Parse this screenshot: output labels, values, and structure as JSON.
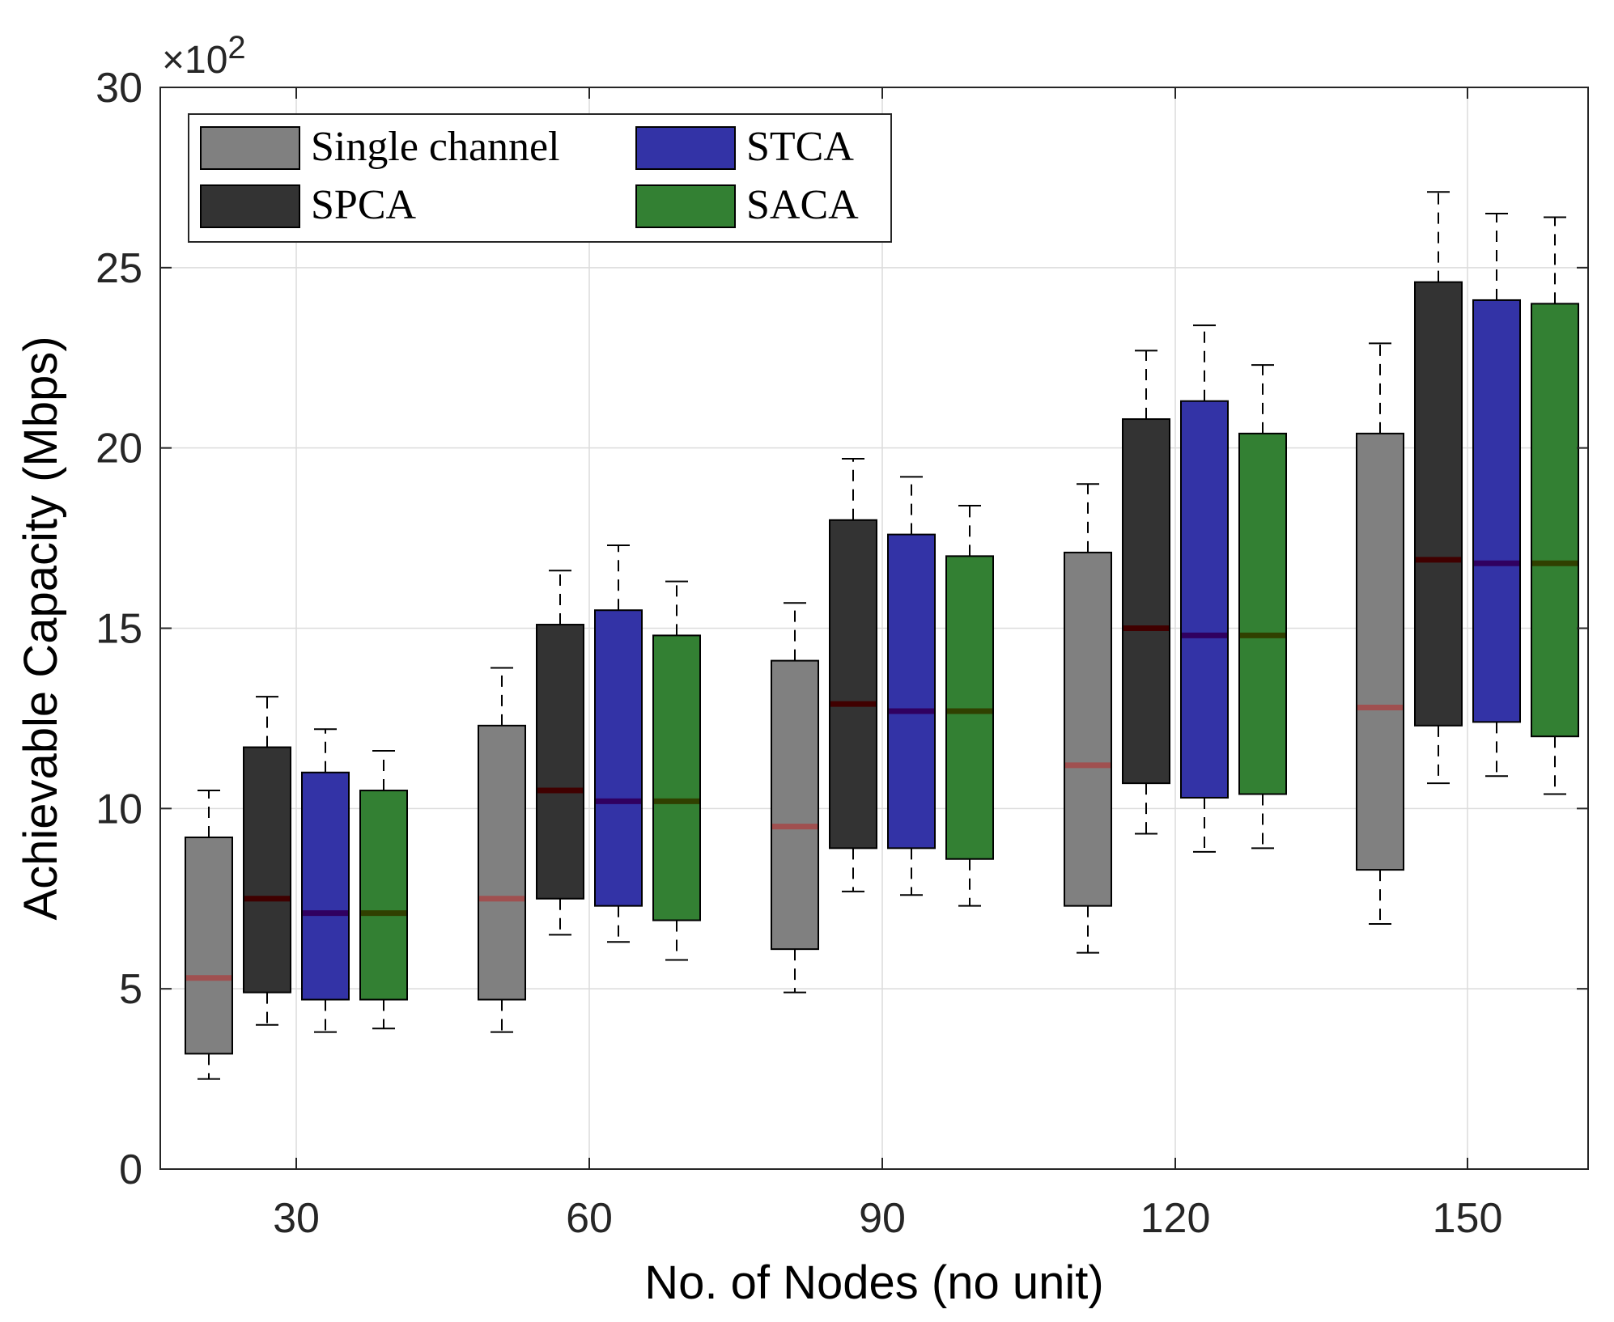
{
  "chart_data": {
    "type": "box",
    "title": "",
    "xlabel": "No. of Nodes (no unit)",
    "ylabel": "Achievable Capacity (Mbps)",
    "y_exponent": {
      "prefix": "×10",
      "power": "2"
    },
    "ylim": [
      0,
      30
    ],
    "yticks": [
      "0",
      "5",
      "10",
      "15",
      "20",
      "25",
      "30"
    ],
    "categories": [
      "30",
      "60",
      "90",
      "120",
      "150"
    ],
    "grid": true,
    "legend_position": "top-left",
    "series": [
      {
        "name": "Single channel",
        "color": "#808080",
        "median_color": "#a05050",
        "boxes": [
          {
            "whisker_low": 2.5,
            "q1": 3.2,
            "median": 5.3,
            "q3": 9.2,
            "whisker_high": 10.5
          },
          {
            "whisker_low": 3.8,
            "q1": 4.7,
            "median": 7.5,
            "q3": 12.3,
            "whisker_high": 13.9
          },
          {
            "whisker_low": 4.9,
            "q1": 6.1,
            "median": 9.5,
            "q3": 14.1,
            "whisker_high": 15.7
          },
          {
            "whisker_low": 6.0,
            "q1": 7.3,
            "median": 11.2,
            "q3": 17.1,
            "whisker_high": 19.0
          },
          {
            "whisker_low": 6.8,
            "q1": 8.3,
            "median": 12.8,
            "q3": 20.4,
            "whisker_high": 22.9
          }
        ]
      },
      {
        "name": "SPCA",
        "color": "#333333",
        "median_color": "#400000",
        "boxes": [
          {
            "whisker_low": 4.0,
            "q1": 4.9,
            "median": 7.5,
            "q3": 11.7,
            "whisker_high": 13.1
          },
          {
            "whisker_low": 6.5,
            "q1": 7.5,
            "median": 10.5,
            "q3": 15.1,
            "whisker_high": 16.6
          },
          {
            "whisker_low": 7.7,
            "q1": 8.9,
            "median": 12.9,
            "q3": 18.0,
            "whisker_high": 19.7
          },
          {
            "whisker_low": 9.3,
            "q1": 10.7,
            "median": 15.0,
            "q3": 20.8,
            "whisker_high": 22.7
          },
          {
            "whisker_low": 10.7,
            "q1": 12.3,
            "median": 16.9,
            "q3": 24.6,
            "whisker_high": 27.1
          }
        ]
      },
      {
        "name": "STCA",
        "color": "#3333a6",
        "median_color": "#300060",
        "boxes": [
          {
            "whisker_low": 3.8,
            "q1": 4.7,
            "median": 7.1,
            "q3": 11.0,
            "whisker_high": 12.2
          },
          {
            "whisker_low": 6.3,
            "q1": 7.3,
            "median": 10.2,
            "q3": 15.5,
            "whisker_high": 17.3
          },
          {
            "whisker_low": 7.6,
            "q1": 8.9,
            "median": 12.7,
            "q3": 17.6,
            "whisker_high": 19.2
          },
          {
            "whisker_low": 8.8,
            "q1": 10.3,
            "median": 14.8,
            "q3": 21.3,
            "whisker_high": 23.4
          },
          {
            "whisker_low": 10.9,
            "q1": 12.4,
            "median": 16.8,
            "q3": 24.1,
            "whisker_high": 26.5
          }
        ]
      },
      {
        "name": "SACA",
        "color": "#338033",
        "median_color": "#304000",
        "boxes": [
          {
            "whisker_low": 3.9,
            "q1": 4.7,
            "median": 7.1,
            "q3": 10.5,
            "whisker_high": 11.6
          },
          {
            "whisker_low": 5.8,
            "q1": 6.9,
            "median": 10.2,
            "q3": 14.8,
            "whisker_high": 16.3
          },
          {
            "whisker_low": 7.3,
            "q1": 8.6,
            "median": 12.7,
            "q3": 17.0,
            "whisker_high": 18.4
          },
          {
            "whisker_low": 8.9,
            "q1": 10.4,
            "median": 14.8,
            "q3": 20.4,
            "whisker_high": 22.3
          },
          {
            "whisker_low": 10.4,
            "q1": 12.0,
            "median": 16.8,
            "q3": 24.0,
            "whisker_high": 26.4
          }
        ]
      }
    ]
  }
}
